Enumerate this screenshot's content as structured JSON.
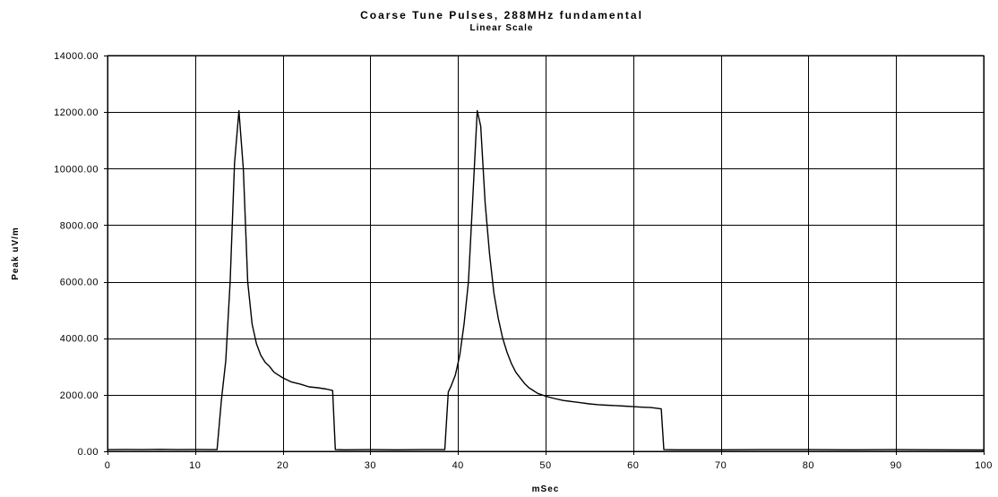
{
  "chart_data": {
    "type": "line",
    "title": "Coarse Tune Pulses, 288MHz fundamental",
    "subtitle": "Linear Scale",
    "xlabel": "mSec",
    "ylabel": "Peak uV/m",
    "xlim": [
      0,
      100
    ],
    "ylim": [
      0,
      14000
    ],
    "x_ticks": [
      "0",
      "10",
      "20",
      "30",
      "40",
      "50",
      "60",
      "70",
      "80",
      "90",
      "100"
    ],
    "y_ticks": [
      "0.00",
      "2000.00",
      "4000.00",
      "6000.00",
      "8000.00",
      "10000.00",
      "12000.00",
      "14000.00"
    ],
    "grid": true,
    "legend": "none",
    "series": [
      {
        "x": [
          0,
          2,
          4,
          6,
          8,
          10,
          12,
          12.5,
          13,
          13.5,
          14,
          14.5,
          15,
          15.5,
          16,
          16.5,
          17,
          17.5,
          18,
          18.5,
          19,
          19.5,
          20,
          21,
          22,
          23,
          24,
          25,
          25.7,
          26,
          27,
          30,
          33,
          36,
          38.5,
          38.9,
          39.2,
          39.7,
          40.2,
          40.7,
          41.2,
          41.7,
          42.2,
          42.6,
          43.1,
          43.6,
          44.1,
          44.6,
          45.1,
          45.6,
          46.1,
          46.6,
          47.1,
          47.6,
          48.1,
          48.6,
          49.1,
          50,
          51,
          52,
          53,
          54,
          55,
          56,
          57,
          58,
          59,
          60,
          61,
          62,
          63.2,
          63.5,
          65,
          70,
          75,
          80,
          85,
          90,
          95,
          100
        ],
        "y": [
          60,
          65,
          60,
          70,
          60,
          65,
          60,
          60,
          1800,
          3200,
          6000,
          10200,
          12050,
          10000,
          6000,
          4500,
          3800,
          3400,
          3150,
          3000,
          2800,
          2700,
          2600,
          2450,
          2380,
          2280,
          2250,
          2200,
          2150,
          60,
          55,
          60,
          55,
          60,
          60,
          2100,
          2300,
          2700,
          3400,
          4500,
          6000,
          9000,
          12050,
          11500,
          8800,
          7000,
          5600,
          4700,
          4000,
          3500,
          3100,
          2800,
          2600,
          2400,
          2250,
          2150,
          2050,
          1950,
          1870,
          1800,
          1760,
          1720,
          1680,
          1650,
          1630,
          1620,
          1600,
          1580,
          1560,
          1550,
          1500,
          60,
          55,
          55,
          60,
          60,
          55,
          60,
          55,
          50
        ]
      }
    ]
  }
}
